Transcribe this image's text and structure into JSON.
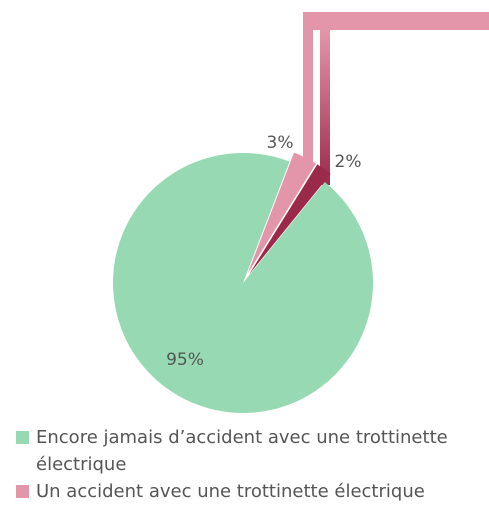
{
  "chart_data": {
    "type": "pie",
    "categories": [
      "Encore jamais d’accident avec une trottinette électrique",
      "Un accident avec une trottinette électrique",
      null
    ],
    "values": [
      95,
      3,
      2
    ],
    "value_labels": [
      "95%",
      "3%",
      "2%"
    ],
    "colors": [
      "#96d9b3",
      "#e396aa",
      "#9b2a4a"
    ]
  }
}
